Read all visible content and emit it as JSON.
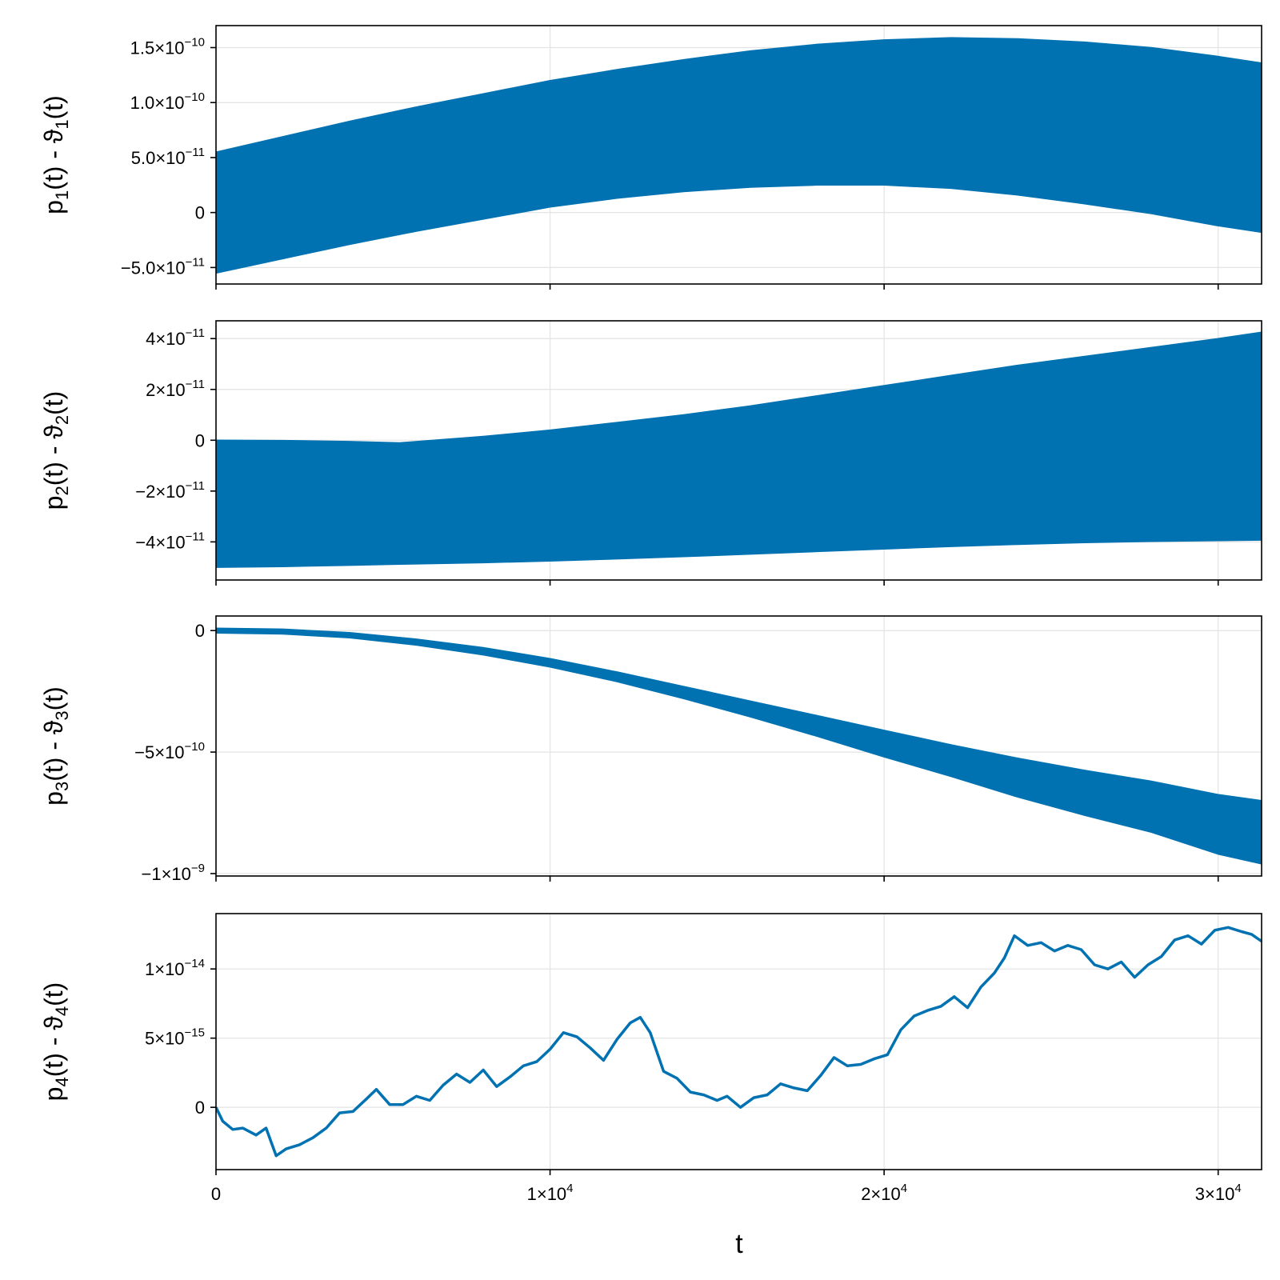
{
  "colors": {
    "series": "#0072b2",
    "grid": "#e3e3e3",
    "frame": "#000000"
  },
  "xaxis": {
    "label": "t",
    "range": [
      0,
      31300
    ],
    "ticks": [
      {
        "value": 0,
        "base": "0",
        "exp": ""
      },
      {
        "value": 10000,
        "base": "1×10",
        "exp": "4"
      },
      {
        "value": 20000,
        "base": "2×10",
        "exp": "4"
      },
      {
        "value": 30000,
        "base": "3×10",
        "exp": "4"
      }
    ]
  },
  "chart_data": [
    {
      "type": "area",
      "ylabel": {
        "main": "p",
        "sub1": "1",
        "mid": "(t) - ϑ",
        "sub2": "1",
        "end": "(t)"
      },
      "ylim": [
        -6.5e-11,
        1.7e-10
      ],
      "yticks": [
        {
          "value": -5e-11,
          "base": "−5.0×10",
          "exp": "−11"
        },
        {
          "value": 0,
          "base": "0",
          "exp": ""
        },
        {
          "value": 5e-11,
          "base": "5.0×10",
          "exp": "−11"
        },
        {
          "value": 1e-10,
          "base": "1.0×10",
          "exp": "−10"
        },
        {
          "value": 1.5e-10,
          "base": "1.5×10",
          "exp": "−10"
        }
      ],
      "x": [
        0,
        2000,
        4000,
        6000,
        8000,
        10000,
        12000,
        14000,
        16000,
        18000,
        20000,
        22000,
        24000,
        26000,
        28000,
        30000,
        31300
      ],
      "upper": [
        5.5e-11,
        6.9e-11,
        8.3e-11,
        9.6e-11,
        1.08e-10,
        1.2e-10,
        1.3e-10,
        1.39e-10,
        1.47e-10,
        1.53e-10,
        1.57e-10,
        1.59e-10,
        1.58e-10,
        1.55e-10,
        1.5e-10,
        1.42e-10,
        1.36e-10
      ],
      "lower": [
        -5.5e-11,
        -4.2e-11,
        -2.9e-11,
        -1.7e-11,
        -6e-12,
        5e-12,
        1.3e-11,
        1.9e-11,
        2.3e-11,
        2.5e-11,
        2.5e-11,
        2.2e-11,
        1.6e-11,
        8e-12,
        -1e-12,
        -1.2e-11,
        -1.8e-11
      ]
    },
    {
      "type": "area",
      "ylabel": {
        "main": "p",
        "sub1": "2",
        "mid": "(t) - ϑ",
        "sub2": "2",
        "end": "(t)"
      },
      "ylim": [
        -5.5e-11,
        4.7e-11
      ],
      "yticks": [
        {
          "value": -4e-11,
          "base": "−4×10",
          "exp": "−11"
        },
        {
          "value": -2e-11,
          "base": "−2×10",
          "exp": "−11"
        },
        {
          "value": 0,
          "base": "0",
          "exp": ""
        },
        {
          "value": 2e-11,
          "base": "2×10",
          "exp": "−11"
        },
        {
          "value": 4e-11,
          "base": "4×10",
          "exp": "−11"
        }
      ],
      "x": [
        0,
        2000,
        4000,
        5500,
        8000,
        10000,
        12000,
        14000,
        16000,
        18000,
        20000,
        22000,
        24000,
        26000,
        28000,
        30000,
        31300
      ],
      "upper": [
        0,
        -1e-13,
        -5e-13,
        -1e-12,
        1.5e-12,
        4e-12,
        7e-12,
        1e-11,
        1.35e-11,
        1.75e-11,
        2.15e-11,
        2.55e-11,
        2.95e-11,
        3.3e-11,
        3.65e-11,
        4e-11,
        4.25e-11
      ],
      "lower": [
        -5e-11,
        -4.97e-11,
        -4.92e-11,
        -4.88e-11,
        -4.82e-11,
        -4.75e-11,
        -4.67e-11,
        -4.58e-11,
        -4.48e-11,
        -4.38e-11,
        -4.28e-11,
        -4.18e-11,
        -4.1e-11,
        -4.03e-11,
        -3.98e-11,
        -3.95e-11,
        -3.93e-11
      ]
    },
    {
      "type": "area",
      "ylabel": {
        "main": "p",
        "sub1": "3",
        "mid": "(t) - ϑ",
        "sub2": "3",
        "end": "(t)"
      },
      "ylim": [
        -1.01e-09,
        6e-11
      ],
      "yticks": [
        {
          "value": -1e-09,
          "base": "−1×10",
          "exp": "−9"
        },
        {
          "value": -5e-10,
          "base": "−5×10",
          "exp": "−10"
        },
        {
          "value": 0,
          "base": "0",
          "exp": ""
        }
      ],
      "x": [
        0,
        2000,
        4000,
        6000,
        8000,
        10000,
        12000,
        14000,
        16000,
        18000,
        20000,
        22000,
        24000,
        26000,
        28000,
        30000,
        31300
      ],
      "upper": [
        1e-11,
        6e-12,
        -8e-12,
        -3.5e-11,
        -7e-11,
        -1.15e-10,
        -1.7e-10,
        -2.3e-10,
        -2.9e-10,
        -3.5e-10,
        -4.1e-10,
        -4.7e-10,
        -5.25e-10,
        -5.75e-10,
        -6.2e-10,
        -6.75e-10,
        -7e-10
      ],
      "lower": [
        -1e-11,
        -1.4e-11,
        -3e-11,
        -6e-11,
        -1e-10,
        -1.5e-10,
        -2.1e-10,
        -2.8e-10,
        -3.55e-10,
        -4.35e-10,
        -5.2e-10,
        -6e-10,
        -6.85e-10,
        -7.6e-10,
        -8.3e-10,
        -9.2e-10,
        -9.6e-10
      ]
    },
    {
      "type": "line",
      "ylabel": {
        "main": "p",
        "sub1": "4",
        "mid": "(t) - ϑ",
        "sub2": "4",
        "end": "(t)"
      },
      "ylim": [
        -4.5e-15,
        1.4e-14
      ],
      "yticks": [
        {
          "value": 0,
          "base": "0",
          "exp": ""
        },
        {
          "value": 5e-15,
          "base": "5×10",
          "exp": "−15"
        },
        {
          "value": 1e-14,
          "base": "1×10",
          "exp": "−14"
        }
      ],
      "x": [
        0,
        200,
        500,
        800,
        1200,
        1500,
        1800,
        2100,
        2500,
        2900,
        3300,
        3700,
        4100,
        4500,
        4800,
        5200,
        5600,
        6000,
        6400,
        6800,
        7200,
        7600,
        8000,
        8400,
        8800,
        9200,
        9600,
        10000,
        10400,
        10800,
        11200,
        11600,
        12000,
        12400,
        12700,
        13000,
        13400,
        13800,
        14200,
        14600,
        15000,
        15300,
        15700,
        16100,
        16500,
        16900,
        17300,
        17700,
        18100,
        18500,
        18900,
        19300,
        19700,
        20100,
        20500,
        20900,
        21300,
        21700,
        22100,
        22500,
        22900,
        23300,
        23600,
        23900,
        24300,
        24700,
        25100,
        25500,
        25900,
        26300,
        26700,
        27100,
        27500,
        27900,
        28300,
        28700,
        29100,
        29500,
        29900,
        30300,
        30700,
        31000,
        31300
      ],
      "y": [
        0,
        -1e-15,
        -1.6e-15,
        -1.5e-15,
        -2e-15,
        -1.5e-15,
        -3.5e-15,
        -3e-15,
        -2.7e-15,
        -2.2e-15,
        -1.5e-15,
        -4e-16,
        -3e-16,
        6e-16,
        1.3e-15,
        2e-16,
        2e-16,
        8e-16,
        5e-16,
        1.6e-15,
        2.4e-15,
        1.8e-15,
        2.7e-15,
        1.5e-15,
        2.2e-15,
        3e-15,
        3.3e-15,
        4.2e-15,
        5.4e-15,
        5.1e-15,
        4.3e-15,
        3.4e-15,
        4.9e-15,
        6.1e-15,
        6.5e-15,
        5.4e-15,
        2.6e-15,
        2.1e-15,
        1.1e-15,
        9e-16,
        5e-16,
        8e-16,
        0,
        7e-16,
        9e-16,
        1.7e-15,
        1.4e-15,
        1.2e-15,
        2.3e-15,
        3.6e-15,
        3e-15,
        3.1e-15,
        3.5e-15,
        3.8e-15,
        5.6e-15,
        6.6e-15,
        7e-15,
        7.3e-15,
        8e-15,
        7.2e-15,
        8.7e-15,
        9.7e-15,
        1.08e-14,
        1.24e-14,
        1.17e-14,
        1.19e-14,
        1.13e-14,
        1.17e-14,
        1.14e-14,
        1.03e-14,
        1e-14,
        1.05e-14,
        9.4e-15,
        1.03e-14,
        1.09e-14,
        1.21e-14,
        1.24e-14,
        1.18e-14,
        1.28e-14,
        1.3e-14,
        1.27e-14,
        1.25e-14,
        1.2e-14
      ]
    }
  ]
}
